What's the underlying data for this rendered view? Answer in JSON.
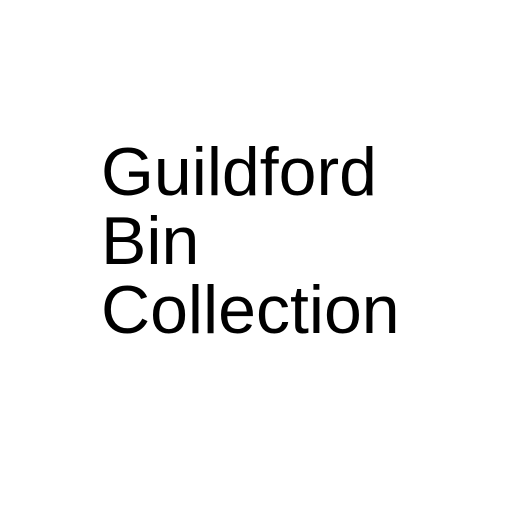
{
  "splash": {
    "title_lines": [
      "Guildford",
      "Bin",
      "Collection"
    ]
  },
  "colors": {
    "background": "#ffffff",
    "text": "#000000"
  }
}
